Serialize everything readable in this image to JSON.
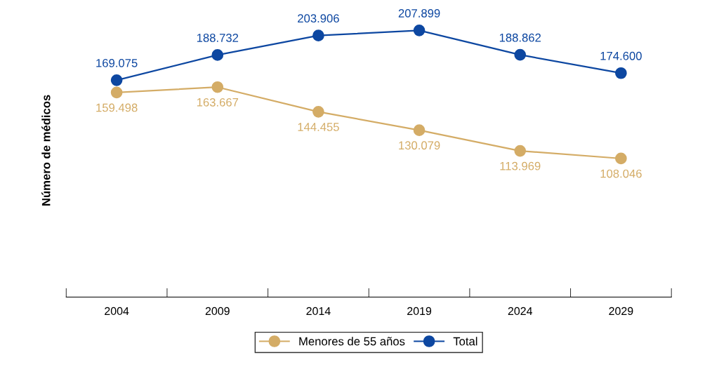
{
  "chart_data": {
    "type": "line",
    "ylabel": "Número de médicos",
    "categories": [
      "2004",
      "2009",
      "2014",
      "2019",
      "2024",
      "2029"
    ],
    "series": [
      {
        "name": "Menores de 55 años",
        "color": "#d4ac66",
        "values": [
          159498,
          163667,
          144455,
          130079,
          113969,
          108046
        ],
        "value_labels": [
          "159.498",
          "163.667",
          "144.455",
          "130.079",
          "113.969",
          "108.046"
        ]
      },
      {
        "name": "Total",
        "color": "#0d47a1",
        "values": [
          169075,
          188732,
          203906,
          207899,
          188862,
          174600
        ],
        "value_labels": [
          "169.075",
          "188.732",
          "203.906",
          "207.899",
          "188.862",
          "174.600"
        ]
      }
    ],
    "marker": "circle",
    "line_style": "solid",
    "grid": false,
    "legend": "bottom"
  }
}
